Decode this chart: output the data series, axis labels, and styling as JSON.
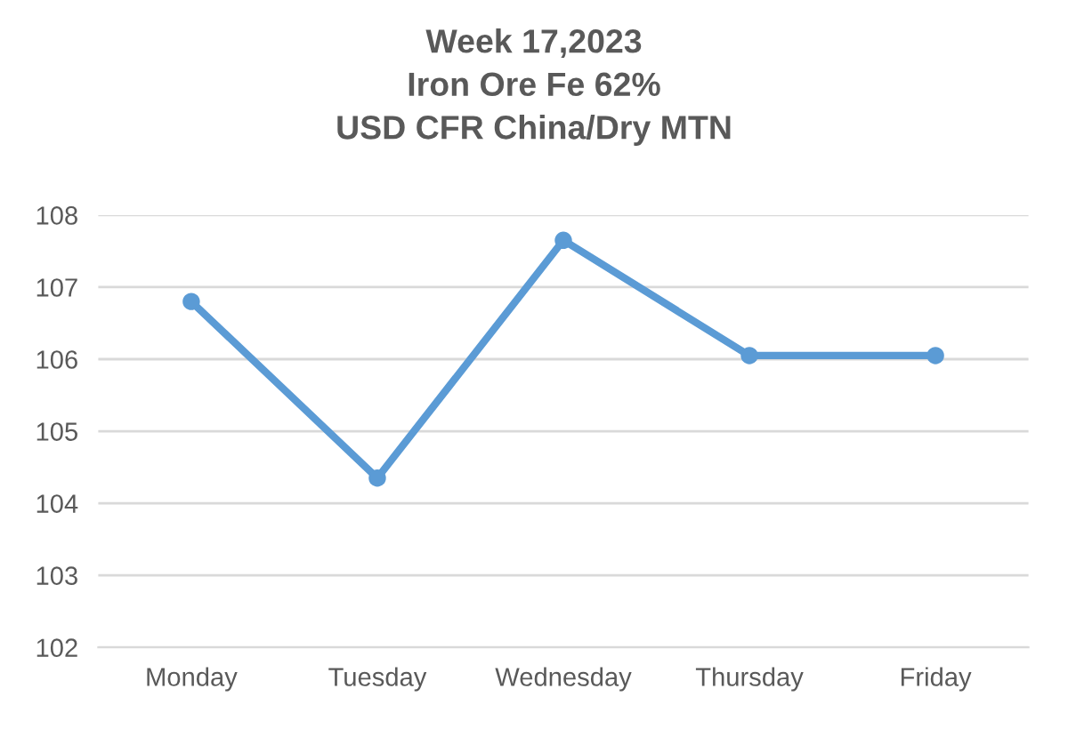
{
  "chart_data": {
    "type": "line",
    "title": "Week 17,2023\nIron Ore Fe 62%\nUSD CFR China/Dry MTN",
    "categories": [
      "Monday",
      "Tuesday",
      "Wednesday",
      "Thursday",
      "Friday"
    ],
    "series": [
      {
        "color": "#5b9bd5",
        "values": [
          106.8,
          104.35,
          107.65,
          106.05,
          106.05
        ]
      }
    ],
    "ylim": [
      102,
      108
    ],
    "yticks": [
      102,
      103,
      104,
      105,
      106,
      107,
      108
    ],
    "grid": "y",
    "marker": "circle",
    "line_style": "solid"
  }
}
